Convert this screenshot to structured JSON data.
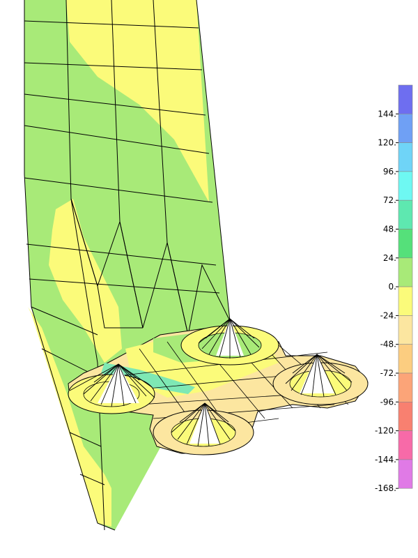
{
  "legend": {
    "ticks": [
      "144.",
      "120.",
      "96.",
      "72.",
      "48.",
      "24.",
      "0.",
      "-24.",
      "-48.",
      "-72.",
      "-96.",
      "-120.",
      "-144.",
      "-168."
    ],
    "colors": [
      "#6e6ef0",
      "#6fa0f5",
      "#6fd4f7",
      "#6ef8f2",
      "#5ee8b0",
      "#55e07a",
      "#a8ea78",
      "#fbfb7a",
      "#fce6a0",
      "#fccd80",
      "#fca478",
      "#f88070",
      "#f76aa8",
      "#e07ae6"
    ]
  },
  "contour_colors": {
    "green": "#a8ea78",
    "yellow": "#fbfb7a",
    "light_orange": "#fce6a0",
    "cyan_green": "#7ee8b4",
    "mesh_line": "#000000"
  }
}
